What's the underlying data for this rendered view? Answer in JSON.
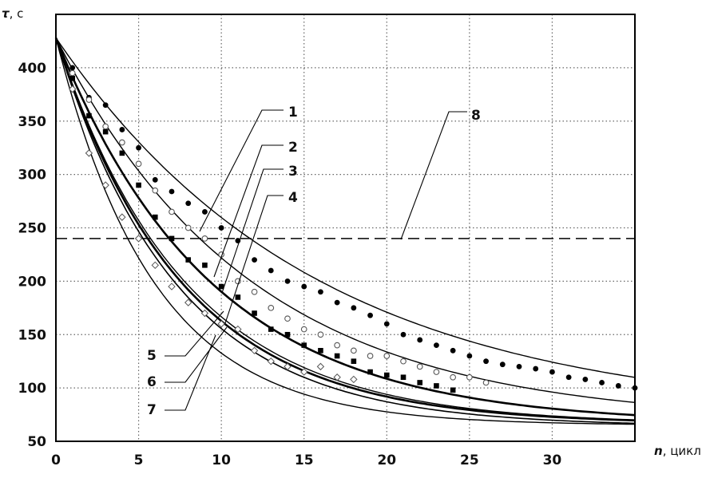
{
  "chart_data": {
    "type": "scatter",
    "xlabel_symbol": "n",
    "xlabel_unit": ", цикл",
    "ylabel_symbol": "τ",
    "ylabel_unit": ", с",
    "xlim": [
      0,
      35
    ],
    "ylim": [
      50,
      450
    ],
    "xticks": [
      0,
      5,
      10,
      15,
      20,
      25,
      30
    ],
    "yticks": [
      50,
      100,
      150,
      200,
      250,
      300,
      350,
      400
    ],
    "grid": true,
    "grid_style": "dotted",
    "series": [
      {
        "name": "1",
        "marker": "filled-circle",
        "values_y0": 428,
        "asymptote": 72,
        "k": 0.064
      },
      {
        "name": "2",
        "marker": "open-circle",
        "values_y0": 428,
        "asymptote": 68,
        "k": 0.085
      },
      {
        "name": "3",
        "marker": "filled-square",
        "values_y0": 428,
        "asymptote": 66,
        "k": 0.107
      },
      {
        "name": "4",
        "marker": "none",
        "values_y0": 428,
        "asymptote": 66,
        "k": 0.128
      },
      {
        "name": "5",
        "marker": "none",
        "values_y0": 428,
        "asymptote": 66,
        "k": 0.132
      },
      {
        "name": "6",
        "marker": "open-diamond",
        "values_y0": 428,
        "asymptote": 64,
        "k": 0.138
      },
      {
        "name": "7",
        "marker": "none",
        "values_y0": 428,
        "asymptote": 65,
        "k": 0.168
      }
    ],
    "points": {
      "1": [
        [
          1,
          400
        ],
        [
          2,
          372
        ],
        [
          3,
          365
        ],
        [
          4,
          342
        ],
        [
          5,
          325
        ],
        [
          6,
          295
        ],
        [
          7,
          284
        ],
        [
          8,
          273
        ],
        [
          9,
          265
        ],
        [
          10,
          250
        ],
        [
          11,
          238
        ],
        [
          12,
          220
        ],
        [
          13,
          210
        ],
        [
          14,
          200
        ],
        [
          15,
          195
        ],
        [
          16,
          190
        ],
        [
          17,
          180
        ],
        [
          18,
          175
        ],
        [
          19,
          168
        ],
        [
          20,
          160
        ],
        [
          21,
          150
        ],
        [
          22,
          145
        ],
        [
          23,
          140
        ],
        [
          24,
          135
        ],
        [
          25,
          130
        ],
        [
          26,
          125
        ],
        [
          27,
          122
        ],
        [
          28,
          120
        ],
        [
          29,
          118
        ],
        [
          30,
          115
        ],
        [
          31,
          110
        ],
        [
          32,
          108
        ],
        [
          33,
          105
        ],
        [
          34,
          102
        ],
        [
          35,
          100
        ]
      ],
      "2": [
        [
          1,
          395
        ],
        [
          2,
          370
        ],
        [
          3,
          345
        ],
        [
          4,
          330
        ],
        [
          5,
          310
        ],
        [
          6,
          285
        ],
        [
          7,
          265
        ],
        [
          8,
          250
        ],
        [
          9,
          240
        ],
        [
          10,
          225
        ],
        [
          11,
          200
        ],
        [
          12,
          190
        ],
        [
          13,
          175
        ],
        [
          14,
          165
        ],
        [
          15,
          155
        ],
        [
          16,
          150
        ],
        [
          17,
          140
        ],
        [
          18,
          135
        ],
        [
          19,
          130
        ],
        [
          20,
          130
        ],
        [
          21,
          125
        ],
        [
          22,
          120
        ],
        [
          23,
          115
        ],
        [
          24,
          110
        ],
        [
          25,
          110
        ],
        [
          26,
          105
        ]
      ],
      "3": [
        [
          1,
          390
        ],
        [
          2,
          355
        ],
        [
          3,
          340
        ],
        [
          4,
          320
        ],
        [
          5,
          290
        ],
        [
          6,
          260
        ],
        [
          7,
          240
        ],
        [
          8,
          220
        ],
        [
          9,
          215
        ],
        [
          10,
          195
        ],
        [
          11,
          185
        ],
        [
          12,
          170
        ],
        [
          13,
          155
        ],
        [
          14,
          150
        ],
        [
          15,
          140
        ],
        [
          16,
          135
        ],
        [
          17,
          130
        ],
        [
          18,
          125
        ],
        [
          19,
          115
        ],
        [
          20,
          112
        ],
        [
          21,
          110
        ],
        [
          22,
          105
        ],
        [
          23,
          102
        ],
        [
          24,
          98
        ]
      ],
      "6": [
        [
          1,
          380
        ],
        [
          2,
          320
        ],
        [
          3,
          290
        ],
        [
          4,
          260
        ],
        [
          5,
          240
        ],
        [
          6,
          215
        ],
        [
          7,
          195
        ],
        [
          8,
          180
        ],
        [
          9,
          170
        ],
        [
          10,
          160
        ],
        [
          11,
          155
        ],
        [
          12,
          135
        ],
        [
          13,
          125
        ],
        [
          14,
          120
        ],
        [
          15,
          115
        ],
        [
          16,
          120
        ],
        [
          17,
          110
        ],
        [
          18,
          108
        ]
      ]
    },
    "threshold": {
      "name": "8",
      "y": 240,
      "style": "dashed"
    },
    "labels": [
      "1",
      "2",
      "3",
      "4",
      "5",
      "6",
      "7",
      "8"
    ]
  }
}
